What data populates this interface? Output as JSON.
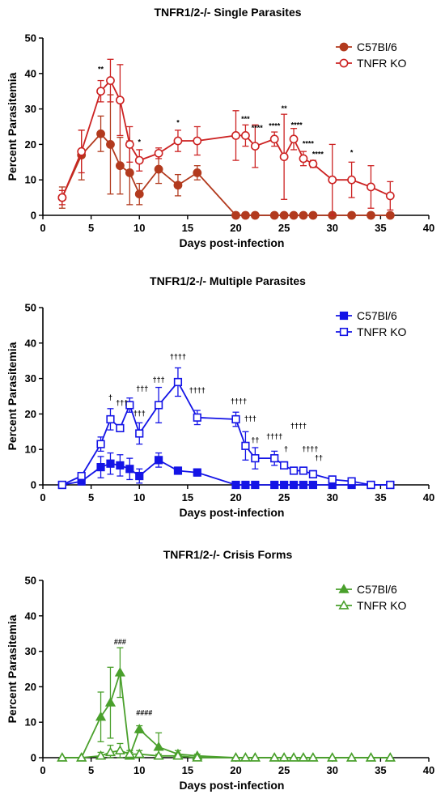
{
  "chart_data": [
    {
      "type": "line",
      "title": "TNFR1/2-/-  Single Parasites",
      "xlabel": "Days post-infection",
      "ylabel": "Percent Parasitemia",
      "xlim": [
        0,
        40
      ],
      "ylim": [
        0,
        50
      ],
      "xticks": [
        "0",
        "5",
        "10",
        "15",
        "20",
        "25",
        "30",
        "35",
        "40"
      ],
      "yticks": [
        "0",
        "10",
        "20",
        "30",
        "40",
        "50"
      ],
      "grid": false,
      "legend": "top-right",
      "series": [
        {
          "name": "C57Bl/6",
          "marker": "filled-circle",
          "color": "#b23a1e",
          "x": [
            2,
            4,
            6,
            7,
            8,
            9,
            10,
            12,
            14,
            16,
            20,
            21,
            22,
            24,
            25,
            26,
            27,
            28,
            30,
            32,
            34,
            36
          ],
          "y": [
            5,
            17,
            23,
            20,
            14,
            12,
            6,
            13,
            8.5,
            12,
            0,
            0,
            0,
            0,
            0,
            0,
            0,
            0,
            0,
            0,
            0,
            0
          ],
          "err": [
            3,
            7,
            5,
            14,
            8,
            9,
            3,
            4,
            3,
            2,
            0,
            0,
            0,
            0,
            0,
            0,
            0,
            0,
            0,
            0,
            0,
            0
          ]
        },
        {
          "name": "TNFR KO",
          "marker": "open-circle",
          "color": "#cc2222",
          "x": [
            2,
            4,
            6,
            7,
            8,
            9,
            10,
            12,
            14,
            16,
            20,
            21,
            22,
            24,
            25,
            26,
            27,
            28,
            30,
            32,
            34,
            36
          ],
          "y": [
            5,
            18,
            35,
            38,
            32.5,
            20,
            15.5,
            17.5,
            21,
            21,
            22.5,
            22.5,
            19.5,
            21.5,
            16.5,
            21.5,
            16,
            14.5,
            10,
            10,
            8,
            5.5
          ],
          "err": [
            2,
            6,
            3,
            6,
            10,
            5,
            3,
            1.5,
            3,
            4,
            7,
            3,
            6,
            2,
            12,
            3,
            2,
            1,
            10,
            5,
            6,
            4
          ]
        }
      ],
      "annotations": [
        {
          "x": 6,
          "y": 40.5,
          "text": "**"
        },
        {
          "x": 10,
          "y": 20,
          "text": "*"
        },
        {
          "x": 14,
          "y": 25.5,
          "text": "*"
        },
        {
          "x": 21,
          "y": 26.5,
          "text": "***"
        },
        {
          "x": 22.2,
          "y": 24,
          "text": "****"
        },
        {
          "x": 24,
          "y": 24.5,
          "text": "****"
        },
        {
          "x": 25,
          "y": 29.5,
          "text": "**"
        },
        {
          "x": 26.3,
          "y": 24.8,
          "text": "****"
        },
        {
          "x": 27.5,
          "y": 19.5,
          "text": "****"
        },
        {
          "x": 28.5,
          "y": 16.5,
          "text": "****"
        },
        {
          "x": 32,
          "y": 17,
          "text": "*"
        }
      ]
    },
    {
      "type": "line",
      "title": "TNFR1/2-/-  Multiple Parasites",
      "xlabel": "Days post-infection",
      "ylabel": "Percent Parasitemia",
      "xlim": [
        0,
        40
      ],
      "ylim": [
        0,
        50
      ],
      "xticks": [
        "0",
        "5",
        "10",
        "15",
        "20",
        "25",
        "30",
        "35",
        "40"
      ],
      "yticks": [
        "0",
        "10",
        "20",
        "30",
        "40",
        "50"
      ],
      "grid": false,
      "legend": "top-right",
      "series": [
        {
          "name": "C57Bl/6",
          "marker": "filled-square",
          "color": "#1414e6",
          "x": [
            2,
            4,
            6,
            7,
            8,
            9,
            10,
            12,
            14,
            16,
            20,
            21,
            22,
            24,
            25,
            26,
            27,
            28,
            30,
            32,
            34,
            36
          ],
          "y": [
            0,
            1,
            5,
            6,
            5.5,
            4.5,
            2.5,
            7,
            4,
            3.5,
            0,
            0,
            0,
            0,
            0,
            0,
            0,
            0,
            0,
            0,
            0,
            0
          ],
          "err": [
            0,
            1,
            3,
            3,
            3,
            3,
            2,
            2,
            1,
            1,
            0,
            0,
            0,
            0,
            0,
            0,
            0,
            0,
            0,
            0,
            0,
            0
          ]
        },
        {
          "name": "TNFR KO",
          "marker": "open-square",
          "color": "#1414e6",
          "x": [
            2,
            4,
            6,
            7,
            8,
            9,
            10,
            12,
            14,
            16,
            20,
            21,
            22,
            24,
            25,
            26,
            27,
            28,
            30,
            32,
            34,
            36
          ],
          "y": [
            0,
            2.5,
            11.5,
            18.5,
            16,
            22.5,
            14.5,
            22.5,
            29,
            19,
            18.5,
            11,
            7.5,
            7.5,
            5.5,
            4,
            4,
            3,
            1.5,
            1,
            0,
            0
          ],
          "err": [
            0,
            1,
            2,
            3,
            1,
            2,
            3,
            5,
            4,
            2,
            2,
            4,
            3,
            2,
            1,
            1,
            1,
            1,
            1,
            1,
            0,
            0
          ]
        }
      ],
      "annotations": [
        {
          "x": 7,
          "y": 24,
          "text": "†"
        },
        {
          "x": 8.2,
          "y": 22.5,
          "text": "†††"
        },
        {
          "x": 10.3,
          "y": 26.5,
          "text": "†††"
        },
        {
          "x": 10,
          "y": 19.5,
          "text": "†††"
        },
        {
          "x": 12,
          "y": 29,
          "text": "†††"
        },
        {
          "x": 14,
          "y": 35.5,
          "text": "††††"
        },
        {
          "x": 16,
          "y": 26,
          "text": "††††"
        },
        {
          "x": 20.3,
          "y": 23,
          "text": "††††"
        },
        {
          "x": 21.5,
          "y": 18,
          "text": "†††"
        },
        {
          "x": 22,
          "y": 12,
          "text": "††"
        },
        {
          "x": 24,
          "y": 13,
          "text": "††††"
        },
        {
          "x": 25.2,
          "y": 9.5,
          "text": "†"
        },
        {
          "x": 26.5,
          "y": 16,
          "text": "††††"
        },
        {
          "x": 27.7,
          "y": 9.5,
          "text": "††††"
        },
        {
          "x": 28.6,
          "y": 7,
          "text": "††"
        }
      ]
    },
    {
      "type": "line",
      "title": "TNFR1/2-/-  Crisis Forms",
      "xlabel": "Days post-infection",
      "ylabel": "Percent Parasitemia",
      "xlim": [
        0,
        40
      ],
      "ylim": [
        0,
        50
      ],
      "xticks": [
        "0",
        "5",
        "10",
        "15",
        "20",
        "25",
        "30",
        "35",
        "40"
      ],
      "yticks": [
        "0",
        "10",
        "20",
        "30",
        "40",
        "50"
      ],
      "grid": false,
      "legend": "top-right",
      "series": [
        {
          "name": "C57Bl/6",
          "marker": "filled-triangle",
          "color": "#4aa02c",
          "x": [
            2,
            4,
            6,
            7,
            8,
            9,
            10,
            12,
            14,
            16,
            20,
            21,
            22,
            24,
            25,
            26,
            27,
            28,
            30,
            32,
            34,
            36
          ],
          "y": [
            0,
            0,
            11.5,
            15.5,
            24,
            0.5,
            8,
            3,
            1,
            0.5,
            0,
            0,
            0,
            0,
            0,
            0,
            0,
            0,
            0,
            0,
            0,
            0
          ],
          "err": [
            0,
            0,
            7,
            10,
            7,
            1,
            1,
            4,
            1,
            0.5,
            0,
            0,
            0,
            0,
            0,
            0,
            0,
            0,
            0,
            0,
            0,
            0
          ]
        },
        {
          "name": "TNFR KO",
          "marker": "open-triangle",
          "color": "#4aa02c",
          "x": [
            2,
            4,
            6,
            7,
            8,
            9,
            10,
            12,
            14,
            16,
            20,
            21,
            22,
            24,
            25,
            26,
            27,
            28,
            30,
            32,
            34,
            36
          ],
          "y": [
            0,
            0,
            0.5,
            1.5,
            2,
            1,
            1,
            0.5,
            0.5,
            0,
            0,
            0,
            0,
            0,
            0,
            0,
            0,
            0,
            0,
            0,
            0,
            0
          ],
          "err": [
            0,
            0,
            1,
            2,
            2,
            1,
            1,
            0.5,
            0.5,
            0,
            0,
            0,
            0,
            0,
            0,
            0,
            0,
            0,
            0,
            0,
            0,
            0
          ]
        }
      ],
      "annotations": [
        {
          "x": 8,
          "y": 32,
          "text": "###"
        },
        {
          "x": 10.5,
          "y": 12,
          "text": "####"
        }
      ]
    }
  ]
}
